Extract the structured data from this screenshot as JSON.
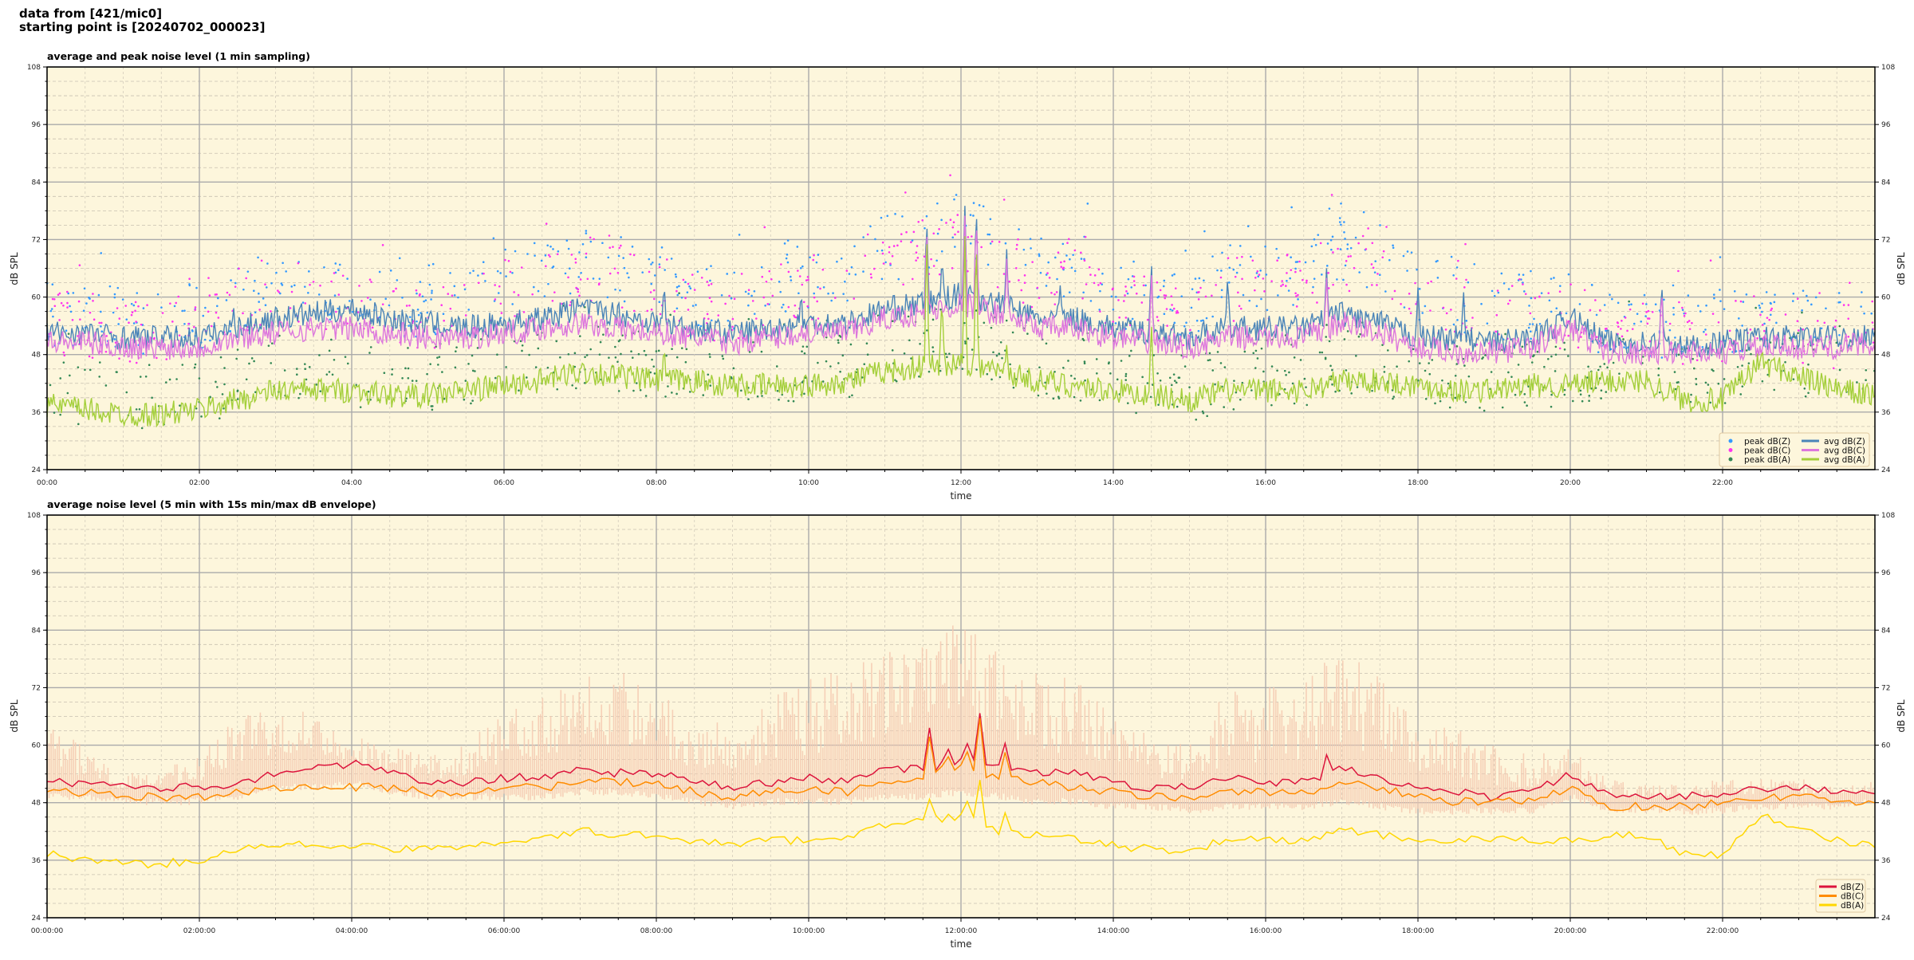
{
  "suptitle": {
    "line1": "data from [421/mic0]",
    "line2": "starting point is [20240702_000023]"
  },
  "chart_data": [
    {
      "type": "line",
      "title": "average and peak noise level (1 min sampling)",
      "xlabel": "time",
      "ylabel": "dB SPL",
      "xlim_hours": [
        0,
        24
      ],
      "ylim": [
        24,
        108
      ],
      "yticks": [
        24,
        36,
        48,
        60,
        72,
        84,
        96,
        108
      ],
      "xtick_labels": [
        "00:00",
        "02:00",
        "04:00",
        "06:00",
        "08:00",
        "10:00",
        "12:00",
        "14:00",
        "16:00",
        "18:00",
        "20:00",
        "22:00"
      ],
      "grid": true,
      "background": "#fdf6dc",
      "legend_position": "lower-right",
      "x_step_hours": 0.5,
      "series": [
        {
          "name": "peak dB(Z)",
          "kind": "scatter",
          "color": "#3399ff",
          "values": [
            57,
            56,
            55,
            55,
            56,
            60,
            63,
            62,
            61,
            59,
            58,
            59,
            63,
            65,
            68,
            66,
            64,
            60,
            59,
            63,
            64,
            66,
            70,
            72,
            75,
            70,
            66,
            66,
            61,
            59,
            58,
            64,
            64,
            65,
            70,
            67,
            62,
            60,
            58,
            58,
            58,
            54,
            54,
            54,
            55,
            56,
            55,
            54,
            55
          ]
        },
        {
          "name": "peak dB(C)",
          "kind": "scatter",
          "color": "#ff33ee",
          "values": [
            55,
            54,
            53,
            53,
            54,
            58,
            61,
            60,
            59,
            57,
            56,
            57,
            61,
            63,
            66,
            64,
            62,
            58,
            57,
            61,
            62,
            64,
            68,
            70,
            73,
            68,
            64,
            64,
            59,
            57,
            56,
            62,
            62,
            63,
            68,
            65,
            60,
            58,
            56,
            56,
            56,
            52,
            52,
            52,
            53,
            54,
            53,
            52,
            53
          ]
        },
        {
          "name": "peak dB(A)",
          "kind": "scatter",
          "color": "#338855",
          "values": [
            41,
            40,
            39,
            39,
            40,
            43,
            45,
            45,
            44,
            43,
            43,
            44,
            45,
            46,
            48,
            47,
            46,
            45,
            44,
            44,
            45,
            46,
            48,
            50,
            52,
            49,
            46,
            45,
            44,
            42,
            41,
            43,
            44,
            44,
            46,
            46,
            44,
            43,
            43,
            44,
            44,
            45,
            45,
            43,
            42,
            47,
            46,
            45,
            44
          ]
        },
        {
          "name": "avg dB(Z)",
          "kind": "line",
          "color": "#4a84b8",
          "values": [
            52,
            52,
            51,
            51,
            51,
            53,
            55,
            56,
            57,
            55,
            54,
            53,
            54,
            55,
            57,
            56,
            54,
            53,
            52,
            53,
            54,
            54,
            57,
            58,
            60,
            58,
            55,
            55,
            53,
            52,
            51,
            53,
            53,
            53,
            56,
            54,
            51,
            51,
            50,
            51,
            55,
            50,
            50,
            49,
            50,
            51,
            51,
            51,
            52
          ],
          "spikes": [
            [
              2.45,
              58
            ],
            [
              6.9,
              61
            ],
            [
              8.1,
              63
            ],
            [
              9.9,
              61
            ],
            [
              11.55,
              77
            ],
            [
              11.75,
              68
            ],
            [
              12.05,
              80
            ],
            [
              12.2,
              80
            ],
            [
              12.6,
              70
            ],
            [
              13.3,
              63
            ],
            [
              14.5,
              68
            ],
            [
              15.5,
              64
            ],
            [
              16.8,
              66
            ],
            [
              18.0,
              62
            ],
            [
              18.6,
              61
            ],
            [
              20.05,
              59
            ],
            [
              21.2,
              64
            ]
          ]
        },
        {
          "name": "avg dB(C)",
          "kind": "line",
          "color": "#dd77dd",
          "values": [
            50,
            50,
            49,
            49,
            49,
            51,
            52,
            53,
            53,
            52,
            51,
            51,
            52,
            53,
            54,
            53,
            52,
            51,
            50,
            51,
            52,
            52,
            55,
            56,
            58,
            56,
            53,
            53,
            51,
            50,
            49,
            51,
            51,
            51,
            54,
            52,
            49,
            48,
            48,
            49,
            53,
            48,
            48,
            48,
            48,
            49,
            49,
            49,
            50
          ],
          "spikes": [
            [
              11.55,
              75
            ],
            [
              12.05,
              78
            ],
            [
              12.2,
              78
            ],
            [
              12.6,
              68
            ],
            [
              14.5,
              66
            ],
            [
              16.8,
              64
            ],
            [
              21.2,
              62
            ]
          ]
        },
        {
          "name": "avg dB(A)",
          "kind": "line",
          "color": "#a4cf3a",
          "values": [
            37,
            36,
            35,
            35,
            36,
            38,
            40,
            40,
            40,
            39,
            39,
            40,
            41,
            42,
            44,
            43,
            42,
            42,
            41,
            41,
            41,
            42,
            44,
            45,
            46,
            44,
            42,
            41,
            40,
            39,
            38,
            40,
            40,
            40,
            42,
            42,
            41,
            40,
            40,
            41,
            41,
            42,
            42,
            38,
            38,
            46,
            43,
            40,
            39
          ],
          "spikes": [
            [
              8.1,
              50
            ],
            [
              11.55,
              75
            ],
            [
              11.75,
              60
            ],
            [
              12.05,
              74
            ],
            [
              12.2,
              74
            ],
            [
              12.6,
              50
            ],
            [
              14.5,
              55
            ]
          ]
        }
      ]
    },
    {
      "type": "line",
      "title": "average noise level (5 min with 15s min/max dB envelope)",
      "xlabel": "time",
      "ylabel": "dB SPL",
      "xlim_hours": [
        0,
        24
      ],
      "ylim": [
        24,
        108
      ],
      "yticks": [
        24,
        36,
        48,
        60,
        72,
        84,
        96,
        108
      ],
      "xtick_labels": [
        "00:00:00",
        "02:00:00",
        "04:00:00",
        "06:00:00",
        "08:00:00",
        "10:00:00",
        "12:00:00",
        "14:00:00",
        "16:00:00",
        "18:00:00",
        "20:00:00",
        "22:00:00"
      ],
      "grid": true,
      "background": "#fdf6dc",
      "legend_position": "lower-right",
      "x_step_hours": 0.5,
      "envelope": {
        "color": "#f5c9b0",
        "max": [
          64,
          60,
          54,
          55,
          58,
          66,
          70,
          68,
          62,
          60,
          58,
          60,
          68,
          70,
          78,
          76,
          72,
          66,
          64,
          72,
          74,
          76,
          80,
          82,
          86,
          80,
          76,
          74,
          66,
          62,
          60,
          72,
          72,
          74,
          80,
          76,
          66,
          64,
          60,
          58,
          60,
          53,
          52,
          52,
          53,
          53,
          53,
          52,
          53
        ],
        "min": [
          50,
          50,
          49,
          49,
          49,
          50,
          52,
          52,
          53,
          51,
          50,
          50,
          50,
          50,
          51,
          51,
          50,
          49,
          48,
          49,
          49,
          49,
          50,
          50,
          51,
          50,
          49,
          49,
          48,
          48,
          47,
          48,
          48,
          48,
          49,
          48,
          47,
          47,
          47,
          47,
          50,
          47,
          47,
          47,
          47,
          48,
          48,
          48,
          49
        ]
      },
      "series": [
        {
          "name": "dB(Z)",
          "color": "#dc143c",
          "values": [
            52,
            52,
            51,
            51,
            51,
            52,
            54,
            55,
            56,
            54,
            52,
            52,
            53,
            53,
            55,
            54,
            54,
            52,
            51,
            52,
            53,
            52,
            55,
            55,
            56,
            56,
            54,
            54,
            52,
            51,
            51,
            53,
            52,
            52,
            55,
            53,
            51,
            50,
            49,
            50,
            54,
            49,
            49,
            49,
            50,
            51,
            51,
            50,
            50
          ],
          "spikes": [
            [
              11.6,
              66
            ],
            [
              11.8,
              64
            ],
            [
              12.05,
              66
            ],
            [
              12.25,
              67
            ],
            [
              12.6,
              63
            ],
            [
              16.8,
              58
            ]
          ]
        },
        {
          "name": "dB(C)",
          "color": "#ff8c00",
          "values": [
            50,
            50,
            49,
            49,
            49,
            50,
            51,
            51,
            51,
            51,
            50,
            50,
            51,
            51,
            52,
            52,
            52,
            50,
            49,
            50,
            51,
            50,
            52,
            53,
            54,
            53,
            52,
            51,
            50,
            49,
            49,
            50,
            50,
            50,
            52,
            51,
            49,
            48,
            48,
            48,
            51,
            47,
            47,
            47,
            48,
            49,
            49,
            48,
            48
          ],
          "spikes": [
            [
              11.6,
              64
            ],
            [
              11.8,
              62
            ],
            [
              12.05,
              65
            ],
            [
              12.25,
              66
            ],
            [
              12.6,
              61
            ]
          ]
        },
        {
          "name": "dB(A)",
          "color": "#ffd700",
          "values": [
            37,
            36,
            35,
            35,
            36,
            38,
            39,
            39,
            39,
            38,
            38,
            39,
            40,
            40,
            42,
            41,
            41,
            40,
            39,
            40,
            40,
            41,
            43,
            44,
            45,
            42,
            41,
            40,
            39,
            38,
            38,
            40,
            40,
            40,
            42,
            41,
            40,
            40,
            40,
            40,
            40,
            41,
            41,
            37,
            37,
            45,
            43,
            40,
            39
          ],
          "spikes": [
            [
              11.6,
              50
            ],
            [
              12.05,
              52
            ],
            [
              12.25,
              53
            ],
            [
              12.6,
              48
            ]
          ]
        }
      ]
    }
  ]
}
